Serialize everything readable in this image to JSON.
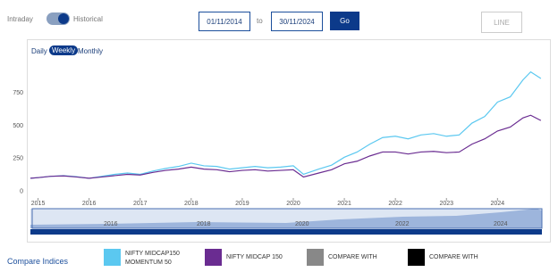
{
  "controls": {
    "mode_left": "Intraday",
    "mode_right": "Historical",
    "date_from": "01/11/2014",
    "to": "to",
    "date_to": "30/11/2024",
    "go": "Go",
    "chart_type": "LINE",
    "periods": [
      "Daily",
      "Weekly",
      "Monthly"
    ]
  },
  "chart_data": {
    "type": "line",
    "x": [
      2014.85,
      2015.0,
      2015.25,
      2015.5,
      2015.75,
      2016.0,
      2016.25,
      2016.5,
      2016.75,
      2017.0,
      2017.25,
      2017.5,
      2017.75,
      2018.0,
      2018.25,
      2018.5,
      2018.75,
      2019.0,
      2019.25,
      2019.5,
      2019.75,
      2020.0,
      2020.2,
      2020.5,
      2020.75,
      2021.0,
      2021.25,
      2021.5,
      2021.75,
      2022.0,
      2022.25,
      2022.5,
      2022.75,
      2023.0,
      2023.25,
      2023.5,
      2023.75,
      2024.0,
      2024.25,
      2024.5,
      2024.65,
      2024.85
    ],
    "series": [
      {
        "name": "NIFTY MIDCAP150 MOMENTUM 50",
        "color": "#5bc8f0",
        "values": [
          100,
          105,
          115,
          120,
          112,
          100,
          115,
          130,
          140,
          130,
          155,
          175,
          190,
          215,
          195,
          190,
          170,
          180,
          190,
          180,
          185,
          195,
          130,
          170,
          200,
          260,
          300,
          360,
          410,
          420,
          400,
          430,
          440,
          420,
          430,
          520,
          570,
          680,
          720,
          850,
          910,
          860
        ]
      },
      {
        "name": "NIFTY MIDCAP 150",
        "color": "#6a2c91",
        "values": [
          100,
          105,
          115,
          118,
          110,
          100,
          110,
          120,
          130,
          125,
          145,
          160,
          170,
          185,
          170,
          165,
          150,
          160,
          165,
          155,
          160,
          165,
          110,
          140,
          165,
          210,
          230,
          270,
          300,
          300,
          285,
          300,
          305,
          295,
          300,
          360,
          400,
          460,
          490,
          560,
          580,
          540
        ]
      }
    ],
    "xlim": [
      2014.85,
      2024.87
    ],
    "xticks": [
      2015,
      2016,
      2017,
      2018,
      2019,
      2020,
      2021,
      2022,
      2023,
      2024
    ],
    "ylim": [
      -50,
      1050
    ],
    "yticks": [
      0,
      250,
      500,
      750
    ]
  },
  "navigator_labels": [
    "2016",
    "2018",
    "2020",
    "2022",
    "2024"
  ],
  "compare": {
    "title": "Compare Indices",
    "slots": [
      "COMPARE WITH",
      "COMPARE WITH"
    ]
  }
}
